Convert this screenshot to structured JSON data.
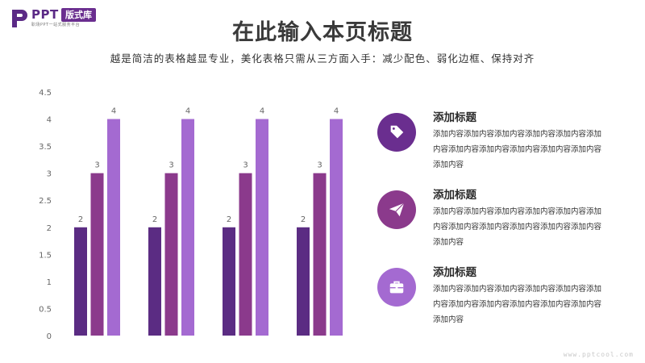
{
  "logo": {
    "ppt": "PPT",
    "badge": "版式库",
    "tagline": "职场PPT一站式服务平台"
  },
  "header": {
    "title": "在此输入本页标题",
    "subtitle": "越是简洁的表格越显专业，美化表格只需从三方面入手：减少配色、弱化边框、保持对齐"
  },
  "chart_data": {
    "type": "bar",
    "categories": [
      "",
      "",
      "",
      ""
    ],
    "series": [
      {
        "values": [
          2,
          2,
          2,
          2
        ],
        "color": "#5b2c83"
      },
      {
        "values": [
          3,
          3,
          3,
          3
        ],
        "color": "#8b3a8c"
      },
      {
        "values": [
          4,
          4,
          4,
          4
        ],
        "color": "#a46ad1"
      }
    ],
    "ylim": [
      0,
      4.5
    ],
    "yticks": [
      "0",
      "0.5",
      "1",
      "1.5",
      "2",
      "2.5",
      "3",
      "3.5",
      "4",
      "4.5"
    ],
    "data_labels": true,
    "grid": false
  },
  "items": [
    {
      "title": "添加标题",
      "body": "添加内容添加内容添加内容添加内容添加内容添加内容添加内容添加内容添加内容添加内容添加内容添加内容",
      "icon": "tag-icon",
      "color": "#6a2e8f"
    },
    {
      "title": "添加标题",
      "body": "添加内容添加内容添加内容添加内容添加内容添加内容添加内容添加内容添加内容添加内容添加内容添加内容",
      "icon": "paper-plane-icon",
      "color": "#8b3a8c"
    },
    {
      "title": "添加标题",
      "body": "添加内容添加内容添加内容添加内容添加内容添加内容添加内容添加内容添加内容添加内容添加内容添加内容",
      "icon": "briefcase-icon",
      "color": "#a46ad1"
    }
  ],
  "watermark": "www.pptcool.com"
}
